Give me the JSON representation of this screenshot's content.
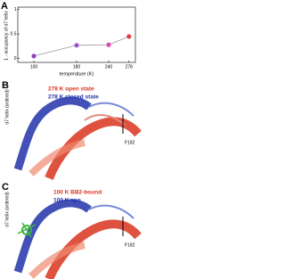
{
  "chart_data": {
    "type": "line",
    "panel_label": "A",
    "y_label": "1 - occupancy of α7 helix",
    "x_label": "temperature (K)",
    "x": [
      100,
      180,
      240,
      278
    ],
    "values": [
      0.05,
      0.27,
      0.28,
      0.45
    ],
    "line_color": "#999999",
    "point_colors": [
      "#8e44c9",
      "#a24fd6",
      "#d94fb4",
      "#e03c3c"
    ],
    "xlim": [
      70,
      290
    ],
    "xticks": [
      100,
      180,
      240,
      278
    ],
    "ylim": [
      -0.08,
      1.05
    ],
    "yticks": [
      0,
      0.5,
      1
    ]
  },
  "panel_b": {
    "label": "B",
    "legend": [
      "278 K open state",
      "278 K closed state"
    ],
    "helix_label": "α7 helix (ordered)",
    "residue": "F182"
  },
  "panel_c": {
    "label": "C",
    "legend": [
      "100 K BB2-bound",
      "100 K apo"
    ],
    "helix_label": "α7 helix (ordered)",
    "residue": "F182"
  }
}
